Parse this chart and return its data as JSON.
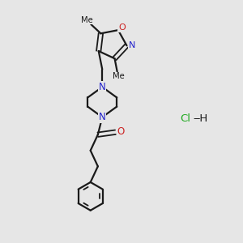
{
  "background_color": "#e6e6e6",
  "bond_color": "#1a1a1a",
  "N_color": "#2222cc",
  "O_color": "#cc2222",
  "Cl_color": "#22aa22",
  "fig_size": [
    3.0,
    3.0
  ],
  "dpi": 100,
  "xlim": [
    0,
    10
  ],
  "ylim": [
    0,
    10
  ]
}
